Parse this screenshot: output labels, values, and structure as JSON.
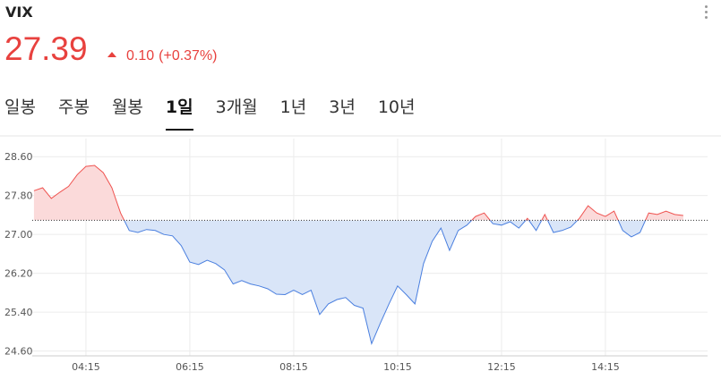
{
  "header": {
    "title": "VIX",
    "price": "27.39",
    "change": "0.10",
    "change_pct": "(+0.37%)"
  },
  "tabs": [
    "일봉",
    "주봉",
    "월봉",
    "1일",
    "3개월",
    "1년",
    "3년",
    "10년"
  ],
  "active_tab": 3,
  "chart_data": {
    "type": "line",
    "x": [
      "03:15",
      "03:25",
      "03:35",
      "03:45",
      "03:55",
      "04:05",
      "04:15",
      "04:25",
      "04:35",
      "04:45",
      "04:55",
      "05:05",
      "05:15",
      "05:25",
      "05:35",
      "05:45",
      "05:55",
      "06:05",
      "06:15",
      "06:25",
      "06:35",
      "06:45",
      "06:55",
      "07:05",
      "07:15",
      "07:25",
      "07:35",
      "07:45",
      "07:55",
      "08:05",
      "08:15",
      "08:25",
      "08:35",
      "08:45",
      "08:55",
      "09:05",
      "09:15",
      "09:25",
      "09:35",
      "09:45",
      "09:55",
      "10:05",
      "10:15",
      "10:25",
      "10:35",
      "10:45",
      "10:55",
      "11:05",
      "11:15",
      "11:25",
      "11:35",
      "11:45",
      "11:55",
      "12:05",
      "12:15",
      "12:25",
      "12:35",
      "12:45",
      "12:55",
      "13:05",
      "13:15",
      "13:25",
      "13:35",
      "13:45",
      "13:55",
      "14:05",
      "14:15",
      "14:25",
      "14:35",
      "14:45",
      "14:55",
      "15:05",
      "15:15",
      "15:25",
      "15:35",
      "15:45"
    ],
    "values": [
      27.9,
      27.96,
      27.74,
      27.87,
      27.99,
      28.23,
      28.4,
      28.42,
      28.27,
      27.96,
      27.44,
      27.08,
      27.04,
      27.1,
      27.08,
      27.0,
      26.97,
      26.77,
      26.43,
      26.38,
      26.47,
      26.4,
      26.27,
      25.98,
      26.05,
      25.98,
      25.94,
      25.88,
      25.77,
      25.76,
      25.85,
      25.76,
      25.85,
      25.35,
      25.57,
      25.66,
      25.7,
      25.54,
      25.48,
      24.75,
      25.17,
      25.57,
      25.94,
      25.76,
      25.57,
      26.4,
      26.86,
      27.13,
      26.67,
      27.08,
      27.19,
      27.37,
      27.44,
      27.22,
      27.19,
      27.26,
      27.13,
      27.33,
      27.08,
      27.41,
      27.04,
      27.08,
      27.15,
      27.33,
      27.59,
      27.44,
      27.37,
      27.48,
      27.08,
      26.95,
      27.04,
      27.44,
      27.41,
      27.48,
      27.41,
      27.39
    ],
    "baseline": 27.29,
    "up_color": "#ef5350",
    "down_color": "#4a7fdf",
    "up_fill": "#fbdada",
    "down_fill": "#d9e5f8",
    "xlim": [
      "03:13",
      "16:13"
    ],
    "xticks": [
      "04:15",
      "06:15",
      "08:15",
      "10:15",
      "12:15",
      "14:15"
    ],
    "ylim": [
      24.5,
      28.88
    ],
    "yticks": [
      {
        "value": 24.6,
        "label": "24.60"
      },
      {
        "value": 25.4,
        "label": "25.40"
      },
      {
        "value": 26.2,
        "label": "26.20"
      },
      {
        "value": 27.0,
        "label": "27.00"
      },
      {
        "value": 27.8,
        "label": "27.80"
      },
      {
        "value": 28.6,
        "label": "28.60"
      }
    ],
    "grid": true
  }
}
